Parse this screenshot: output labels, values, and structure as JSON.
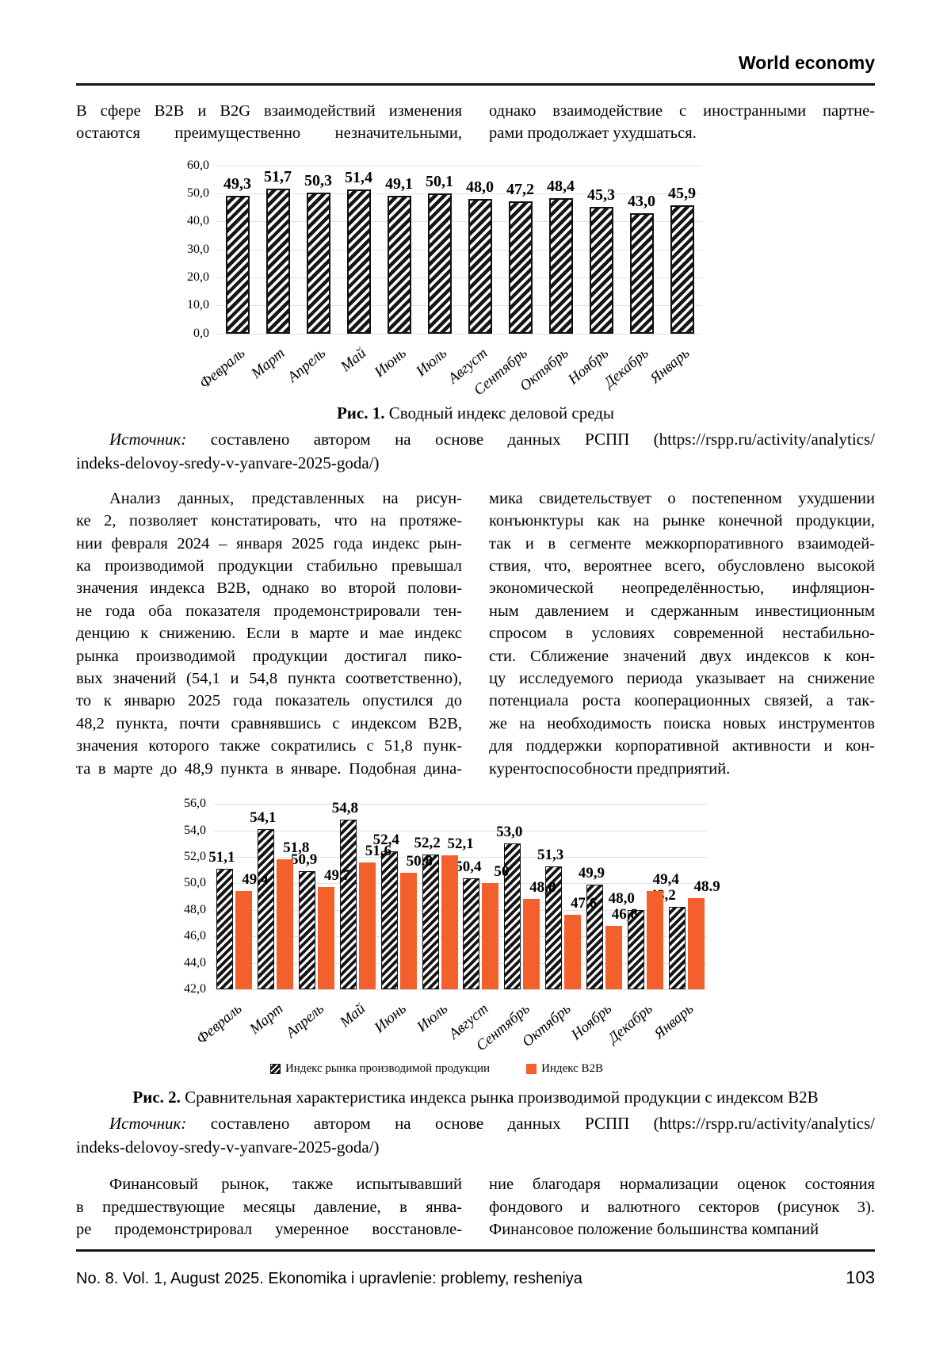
{
  "header": {
    "title": "World economy"
  },
  "intro": {
    "left_lines": [
      "В сфере B2B и B2G взаимодействий изменения",
      "остаются преимущественно незначительными,"
    ],
    "right_lines": [
      "однако взаимодействие с иностранными партне-",
      "рами продолжает ухудшаться."
    ]
  },
  "figure1": {
    "caption_label": "Рис. 1.",
    "caption_text": "Сводный индекс деловой среды",
    "source_label": "Источник:",
    "source_line1": "составлено автором на основе данных РСПП (https://rspp.ru/activity/analytics/",
    "source_line2": "indeks-delovoy-sredy-v-yanvare-2025-goda/)"
  },
  "body": {
    "left_lines": [
      "Анализ данных, представленных на рисун-",
      "ке 2, позволяет констатировать, что на протяже-",
      "нии февраля 2024 – января 2025 года индекс рын-",
      "ка производимой продукции стабильно превышал",
      "значения индекса B2B, однако во второй полови-",
      "не года оба показателя продемонстрировали тен-",
      "денцию к снижению. Если в марте и мае индекс",
      "рынка производимой продукции достигал пико-",
      "вых значений (54,1 и 54,8 пункта соответственно),",
      "то к январю 2025 года показатель опустился до",
      "48,2 пункта, почти сравнявшись с индексом B2B,",
      "значения которого также сократились с 51,8 пунк-",
      "та в марте до 48,9 пункта в январе. Подобная дина-"
    ],
    "right_lines": [
      "мика свидетельствует о постепенном ухудшении",
      "конъюнктуры как на рынке конечной продукции,",
      "так и в сегменте межкорпоративного взаимодей-",
      "ствия, что, вероятнее всего, обусловлено высокой",
      "экономической неопределённостью, инфляцион-",
      "ным давлением и сдержанным инвестиционным",
      "спросом в условиях современной нестабильно-",
      "сти. Сближение значений двух индексов к кон-",
      "цу исследуемого периода указывает на снижение",
      "потенциала роста кооперационных связей, а так-",
      "же на необходимость поиска новых инструментов",
      "для поддержки корпоративной активности и кон-",
      "курентоспособности предприятий."
    ]
  },
  "figure2": {
    "caption_label": "Рис. 2.",
    "caption_text": "Сравнительная характеристика индекса рынка производимой продукции с индексом B2B",
    "source_label": "Источник:",
    "source_line1": "составлено автором на основе данных РСПП (https://rspp.ru/activity/analytics/",
    "source_line2": "indeks-delovoy-sredy-v-yanvare-2025-goda/)"
  },
  "bottom": {
    "left_lines": [
      "Финансовый рынок, также испытывавший",
      "в предшествующие месяцы давление, в янва-",
      "ре продемонстрировал умеренное восстановле-"
    ],
    "right_lines": [
      "ние благодаря нормализации оценок состояния",
      "фондового и валютного секторов (рисунок 3).",
      "Финансовое положение большинства компаний"
    ]
  },
  "footer": {
    "journal": "No. 8. Vol. 1, August 2025. Ekonomika i upravlenie: problemy, resheniya",
    "page": "103"
  },
  "colors": {
    "accent_orange": "#F4602C",
    "hatch_black": "#161616",
    "gridline": "#E2E2E2"
  },
  "chart_data": [
    {
      "id": "fig1",
      "type": "bar",
      "title": "Сводный индекс деловой среды",
      "categories": [
        "Февраль",
        "Март",
        "Апрель",
        "Май",
        "Июнь",
        "Июль",
        "Август",
        "Сентябрь",
        "Октябрь",
        "Ноябрь",
        "Декабрь",
        "Январь"
      ],
      "series": [
        {
          "name": "Сводный индекс деловой среды",
          "pattern": "hatch",
          "values": [
            49.3,
            51.7,
            50.3,
            51.4,
            49.1,
            50.1,
            48.0,
            47.2,
            48.4,
            45.3,
            43.0,
            45.9
          ],
          "labels": [
            "49,3",
            "51,7",
            "50,3",
            "51,4",
            "49,1",
            "50,1",
            "48,0",
            "47,2",
            "48,4",
            "45,3",
            "43,0",
            "45,9"
          ]
        }
      ],
      "ylim": [
        0,
        60
      ],
      "ystep": 10,
      "ytick_labels": [
        "0,0",
        "10,0",
        "20,0",
        "30,0",
        "40,0",
        "50,0",
        "60,0"
      ],
      "grid": true,
      "legend": false
    },
    {
      "id": "fig2",
      "type": "bar",
      "title": "Сравнительная характеристика индекса рынка производимой продукции с индексом B2B",
      "categories": [
        "Февраль",
        "Март",
        "Апрель",
        "Май",
        "Июнь",
        "Июль",
        "Август",
        "Сентябрь",
        "Октябрь",
        "Ноябрь",
        "Декабрь",
        "Январь"
      ],
      "series": [
        {
          "name": "Индекс рынка производимой продукции",
          "pattern": "hatch",
          "values": [
            51.1,
            54.1,
            50.9,
            54.8,
            52.4,
            52.2,
            50.4,
            53.0,
            51.3,
            49.9,
            48.0,
            48.2
          ],
          "labels": [
            "51,1",
            "54,1",
            "50,9",
            "54,8",
            "52,4",
            "52,2",
            "50,4",
            "53,0",
            "51,3",
            "49,9",
            "48,0",
            "48,2"
          ]
        },
        {
          "name": "Индекс B2B",
          "color": "#F4602C",
          "values": [
            49.4,
            51.8,
            49.7,
            51.6,
            50.8,
            52.1,
            50,
            48.8,
            47.6,
            46.8,
            49.4,
            48.9
          ],
          "labels": [
            "49,4",
            "51,8",
            "49,7",
            "51,6",
            "50.8",
            "52,1",
            "50",
            "48,8",
            "47,6",
            "46,8",
            "49,4",
            "48.9"
          ]
        }
      ],
      "ylim": [
        42,
        56
      ],
      "ystep": 2,
      "ytick_labels": [
        "42,0",
        "44,0",
        "46,0",
        "48,0",
        "50,0",
        "52,0",
        "54,0",
        "56,0"
      ],
      "grid": true,
      "legend": true,
      "legend_position": "bottom"
    }
  ]
}
